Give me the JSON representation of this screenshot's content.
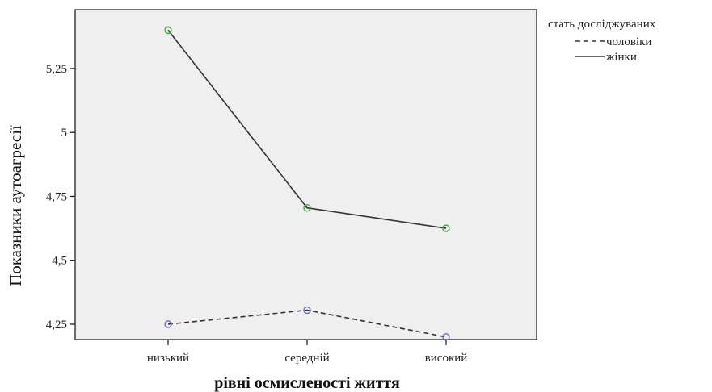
{
  "chart_data": {
    "type": "line",
    "xlabel": "рівні осмисленості життя",
    "ylabel": "Показники аутоагресії",
    "categories": [
      "низький",
      "середній",
      "високий"
    ],
    "y_ticks": [
      "4,25",
      "4,5",
      "4,75",
      "5",
      "5,25"
    ],
    "y_tick_values": [
      4.25,
      4.5,
      4.75,
      5,
      5.25
    ],
    "ylim": [
      4.19,
      5.48
    ],
    "grid": false,
    "legend": {
      "title": "стать досліджуваних",
      "placement": "right",
      "entries": [
        "чоловіки",
        "жінки"
      ]
    },
    "series": [
      {
        "name": "чоловіки",
        "values": [
          4.25,
          4.305,
          4.2
        ],
        "line_style": "dashed",
        "line_color": "#333333",
        "marker_color": "#6a6fc0"
      },
      {
        "name": "жінки",
        "values": [
          5.4,
          4.705,
          4.625
        ],
        "line_style": "solid",
        "line_color": "#333333",
        "marker_color": "#4fa04f"
      }
    ],
    "plot_background": "#eeefee"
  }
}
